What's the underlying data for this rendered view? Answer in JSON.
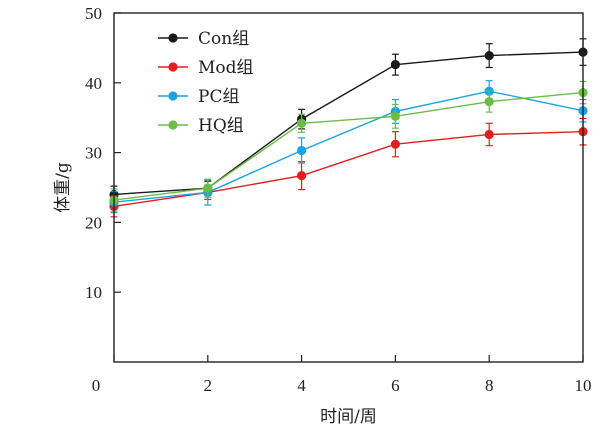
{
  "chart_data": {
    "type": "line",
    "xlabel": "时间/周",
    "ylabel": "体重/g",
    "xlim": [
      0,
      10
    ],
    "ylim": [
      0,
      50
    ],
    "xticks": [
      0,
      2,
      4,
      6,
      8,
      10
    ],
    "yticks": [
      10,
      20,
      30,
      40,
      50
    ],
    "grid": false,
    "legend_position": "top-left",
    "x": [
      0,
      2,
      4,
      6,
      8,
      10
    ],
    "series": [
      {
        "name": "Con组",
        "color": "#1a1a1a",
        "values": [
          24.0,
          24.9,
          34.8,
          42.6,
          43.9,
          44.4
        ],
        "errors": [
          1.2,
          1.0,
          1.4,
          1.5,
          1.7,
          1.9
        ]
      },
      {
        "name": "Mod组",
        "color": "#e02020",
        "values": [
          22.3,
          24.3,
          26.7,
          31.2,
          32.6,
          33.0
        ],
        "errors": [
          1.5,
          1.0,
          2.0,
          1.8,
          1.6,
          1.9
        ]
      },
      {
        "name": "PC组",
        "color": "#1aa3e0",
        "values": [
          22.9,
          24.3,
          30.3,
          35.9,
          38.8,
          36.0
        ],
        "errors": [
          1.5,
          1.8,
          1.8,
          1.7,
          1.5,
          1.6
        ]
      },
      {
        "name": "HQ组",
        "color": "#6cbd45",
        "values": [
          23.2,
          24.9,
          34.2,
          35.2,
          37.3,
          38.6
        ],
        "errors": [
          1.6,
          1.3,
          1.3,
          1.7,
          1.5,
          1.6
        ]
      }
    ]
  }
}
